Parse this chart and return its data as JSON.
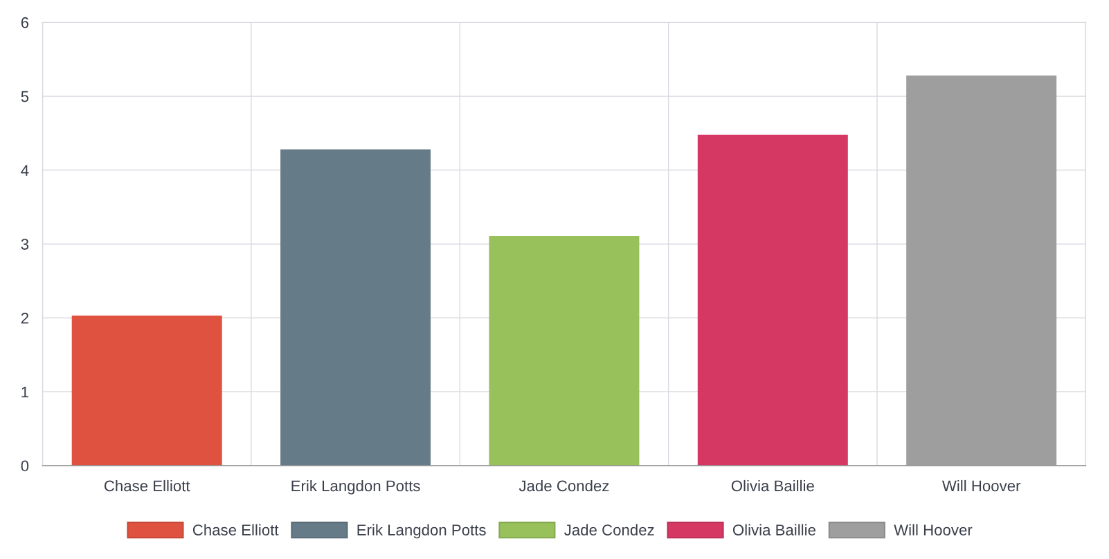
{
  "chart_data": {
    "type": "bar",
    "stacked": true,
    "categories": [
      "Chase Elliott",
      "Erik Langdon Potts",
      "Jade Condez",
      "Olivia Baillie",
      "Will Hoover"
    ],
    "series": [
      {
        "name": "Chase Elliott",
        "color": "#e05240",
        "values": [
          2.03,
          null,
          null,
          null,
          null
        ]
      },
      {
        "name": "Erik Langdon Potts",
        "color": "#667b88",
        "values": [
          null,
          4.28,
          null,
          null,
          null
        ]
      },
      {
        "name": "Jade Condez",
        "color": "#98c15c",
        "values": [
          null,
          null,
          3.11,
          null,
          null
        ]
      },
      {
        "name": "Olivia Baillie",
        "color": "#d63864",
        "values": [
          null,
          null,
          null,
          4.48,
          null
        ]
      },
      {
        "name": "Will Hoover",
        "color": "#9e9e9e",
        "values": [
          null,
          null,
          null,
          null,
          5.28
        ]
      }
    ],
    "ylim": [
      0,
      6
    ],
    "yticks": [
      0,
      1,
      2,
      3,
      4,
      5,
      6
    ],
    "grid": true,
    "legend": "bottom"
  }
}
